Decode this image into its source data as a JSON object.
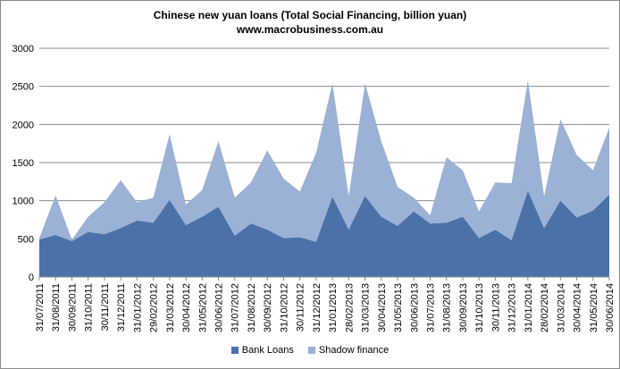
{
  "chart_data": {
    "type": "area",
    "title": "Chinese new yuan loans (Total Social Financing, billion yuan)",
    "subtitle": "www.macrobusiness.com.au",
    "xlabel": "",
    "ylabel": "",
    "ylim": [
      0,
      3000
    ],
    "yticks": [
      0,
      500,
      1000,
      1500,
      2000,
      2500,
      3000
    ],
    "grid": true,
    "legend_position": "bottom",
    "stacked": true,
    "x": [
      "31/07/2011",
      "31/08/2011",
      "30/09/2011",
      "31/10/2011",
      "30/11/2011",
      "31/12/2011",
      "31/01/2012",
      "29/02/2012",
      "31/03/2012",
      "30/04/2012",
      "31/05/2012",
      "30/06/2012",
      "31/07/2012",
      "31/08/2012",
      "30/09/2012",
      "31/10/2012",
      "30/11/2012",
      "31/12/2012",
      "31/01/2013",
      "28/02/2013",
      "31/03/2013",
      "30/04/2013",
      "31/05/2013",
      "30/06/2013",
      "31/07/2013",
      "31/08/2013",
      "30/09/2013",
      "31/10/2013",
      "30/11/2013",
      "31/12/2013",
      "31/01/2014",
      "28/02/2014",
      "31/03/2014",
      "30/04/2014",
      "31/05/2014",
      "30/06/2014"
    ],
    "series": [
      {
        "name": "Bank Loans",
        "color": "#4a72a8",
        "values": [
          490,
          550,
          470,
          590,
          560,
          640,
          740,
          710,
          1010,
          680,
          790,
          920,
          540,
          700,
          620,
          510,
          520,
          460,
          1050,
          620,
          1060,
          790,
          670,
          860,
          700,
          710,
          790,
          510,
          620,
          480,
          1130,
          640,
          1000,
          780,
          870,
          1080
        ]
      },
      {
        "name": "Shadow finance",
        "color": "#9bb1d6",
        "values": [
          20,
          520,
          20,
          200,
          420,
          630,
          240,
          330,
          860,
          270,
          350,
          860,
          500,
          540,
          1040,
          780,
          600,
          1170,
          1490,
          440,
          1480,
          990,
          510,
          180,
          110,
          860,
          610,
          350,
          620,
          750,
          1450,
          420,
          1070,
          820,
          530,
          880
        ]
      }
    ]
  }
}
